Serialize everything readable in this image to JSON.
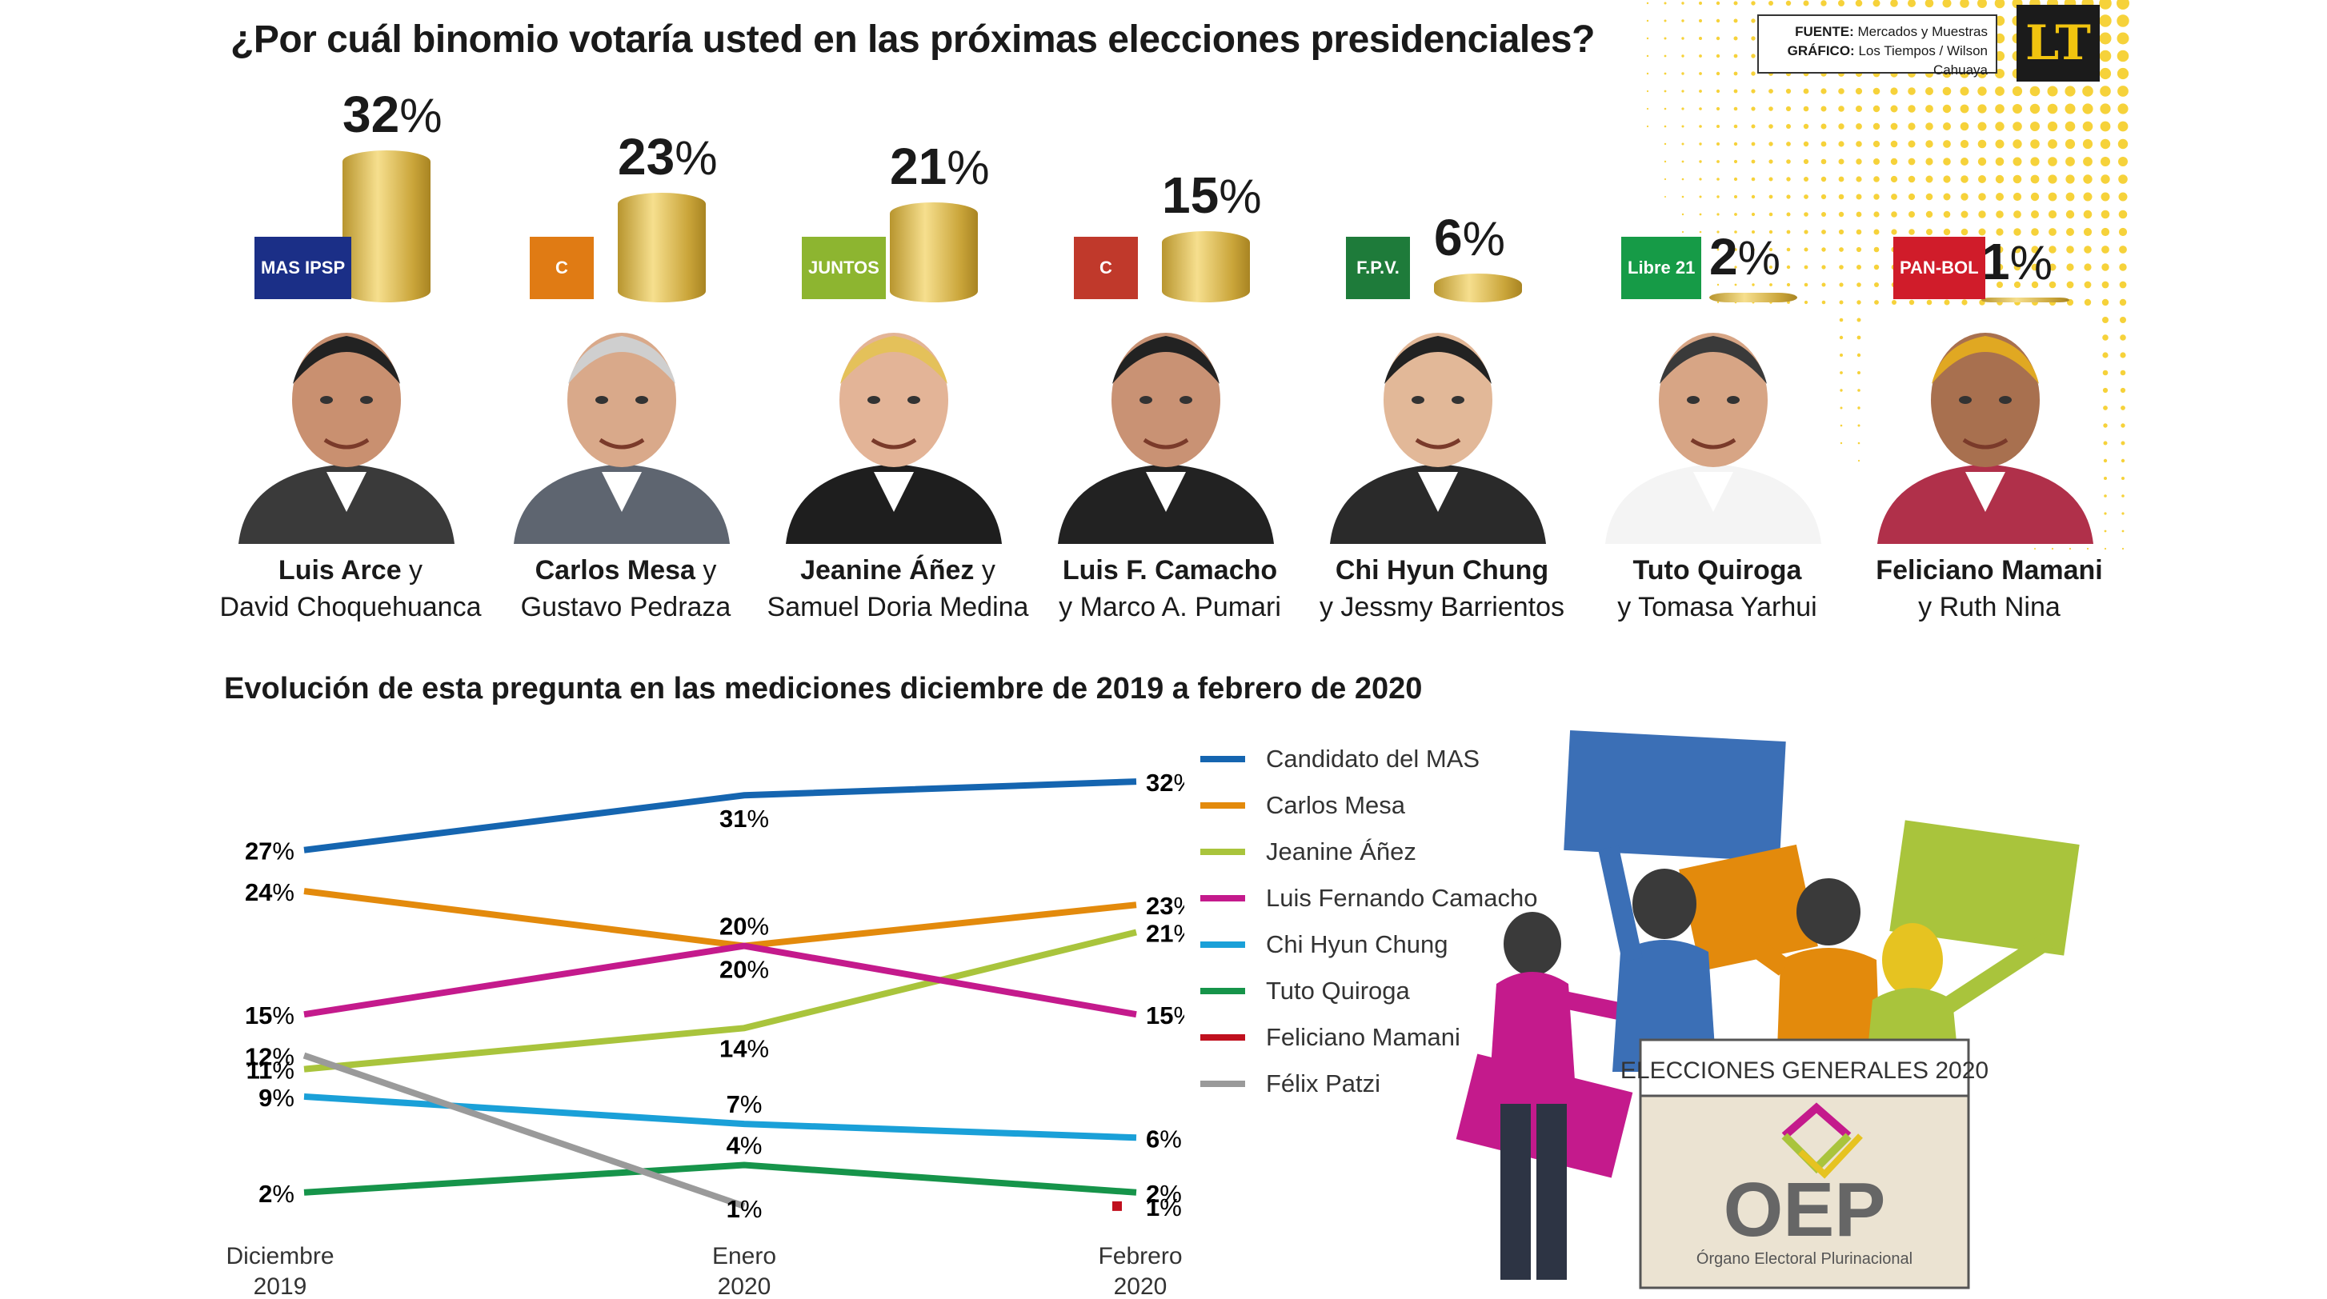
{
  "header": {
    "title": "¿Por cuál binomio votaría usted en las próximas elecciones presidenciales?",
    "source_label": "FUENTE:",
    "source_value": "Mercados y Muestras",
    "graphic_label": "GRÁFICO:",
    "graphic_value": "Los Tiempos / Wilson Cahuaya",
    "logo_text": "LT"
  },
  "candidates": [
    {
      "first": "Luis Arce",
      "conj": " y",
      "second": "David Choquehuanca",
      "pct": "32",
      "party": "MAS IPSP",
      "color": "#1b2f87"
    },
    {
      "first": "Carlos Mesa",
      "conj": " y",
      "second": "Gustavo Pedraza",
      "pct": "23",
      "party": "C",
      "color": "#e07b14"
    },
    {
      "first": "Jeanine Áñez",
      "conj": " y",
      "second": "Samuel Doria Medina",
      "pct": "21",
      "party": "JUNTOS",
      "color": "#8db530"
    },
    {
      "first": "Luis F. Camacho",
      "conj": "",
      "second": "y Marco A. Pumari",
      "pct": "15",
      "party": "C",
      "color": "#c0392b"
    },
    {
      "first": "Chi Hyun Chung",
      "conj": "",
      "second": "y Jessmy Barrientos",
      "pct": "6",
      "party": "F.P.V.",
      "color": "#1e7b3a"
    },
    {
      "first": "Tuto Quiroga",
      "conj": "",
      "second": "y Tomasa Yarhui",
      "pct": "2",
      "party": "Libre 21",
      "color": "#169b47"
    },
    {
      "first": "Feliciano Mamani",
      "conj": "",
      "second": "y Ruth Nina",
      "pct": "1",
      "party": "PAN-BOL",
      "color": "#d01c2a"
    }
  ],
  "pct_symbol": "%",
  "subtitle": "Evolución de esta pregunta en las mediciones diciembre de 2019 a febrero de 2020",
  "chart_data": {
    "type": "line",
    "title": "Evolución de esta pregunta en las mediciones diciembre de 2019 a febrero de 2020",
    "x": [
      "Diciembre 2019",
      "Enero 2020",
      "Febrero 2020"
    ],
    "x_labels": [
      [
        "Diciembre",
        "2019"
      ],
      [
        "Enero",
        "2020"
      ],
      [
        "Febrero",
        "2020"
      ]
    ],
    "ylim": [
      0,
      33
    ],
    "grid": false,
    "legend_position": "right",
    "series": [
      {
        "name": "Candidato del MAS",
        "color": "#1565b0",
        "values": [
          27,
          31,
          32
        ]
      },
      {
        "name": "Carlos Mesa",
        "color": "#e38a0c",
        "values": [
          24,
          20,
          23
        ]
      },
      {
        "name": "Jeanine Áñez",
        "color": "#a9c43c",
        "values": [
          11,
          14,
          21
        ]
      },
      {
        "name": "Luis Fernando Camacho",
        "color": "#c41a8c",
        "values": [
          15,
          20,
          15
        ]
      },
      {
        "name": "Chi Hyun Chung",
        "color": "#1aa0d8",
        "values": [
          9,
          7,
          6
        ]
      },
      {
        "name": "Tuto Quiroga",
        "color": "#16944a",
        "values": [
          2,
          4,
          2
        ]
      },
      {
        "name": "Feliciano Mamani",
        "color": "#c0101e",
        "values": [
          null,
          null,
          1
        ]
      },
      {
        "name": "Félix Patzi",
        "color": "#9a9a9a",
        "values": [
          12,
          1,
          null
        ]
      }
    ]
  },
  "illustration": {
    "box_label": "ELECCIONES GENERALES 2020",
    "brand": "OEP",
    "brand_sub": "Órgano Electoral Plurinacional"
  }
}
